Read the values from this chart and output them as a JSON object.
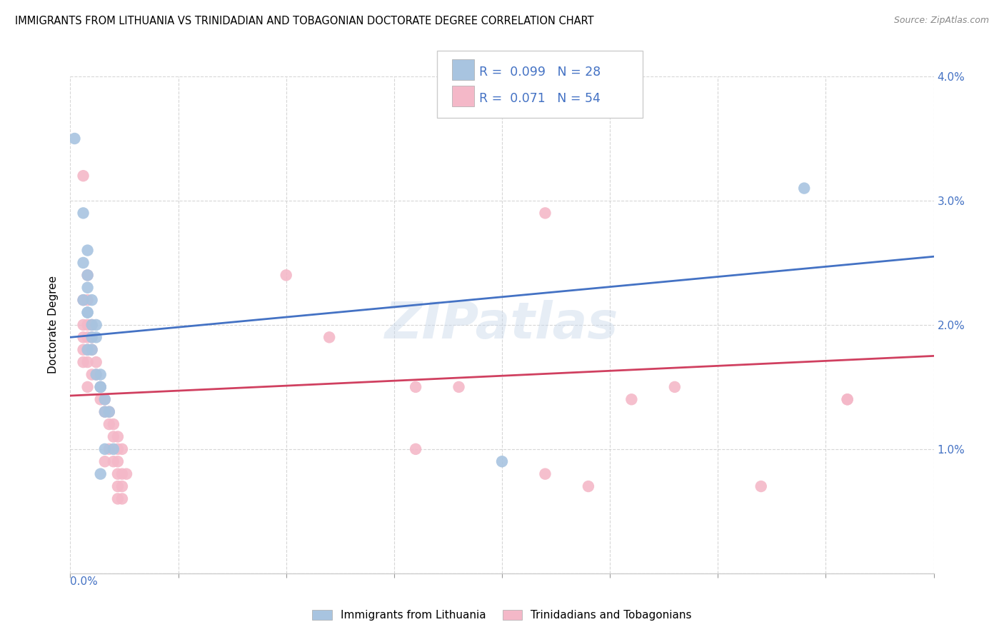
{
  "title": "IMMIGRANTS FROM LITHUANIA VS TRINIDADIAN AND TOBAGONIAN DOCTORATE DEGREE CORRELATION CHART",
  "source": "Source: ZipAtlas.com",
  "ylabel": "Doctorate Degree",
  "ylim": [
    0.0,
    0.04
  ],
  "xlim": [
    0.0,
    0.2
  ],
  "legend_label1": "Immigrants from Lithuania",
  "legend_label2": "Trinidadians and Tobagonians",
  "blue_color": "#a8c4e0",
  "pink_color": "#f4b8c8",
  "blue_line_color": "#4472c4",
  "pink_line_color": "#d04060",
  "watermark": "ZIPatlas",
  "blue_scatter": [
    [
      0.001,
      0.035
    ],
    [
      0.003,
      0.029
    ],
    [
      0.004,
      0.026
    ],
    [
      0.003,
      0.025
    ],
    [
      0.004,
      0.024
    ],
    [
      0.004,
      0.023
    ],
    [
      0.003,
      0.022
    ],
    [
      0.005,
      0.022
    ],
    [
      0.004,
      0.021
    ],
    [
      0.004,
      0.021
    ],
    [
      0.005,
      0.02
    ],
    [
      0.006,
      0.02
    ],
    [
      0.005,
      0.019
    ],
    [
      0.006,
      0.019
    ],
    [
      0.005,
      0.018
    ],
    [
      0.004,
      0.018
    ],
    [
      0.006,
      0.016
    ],
    [
      0.007,
      0.016
    ],
    [
      0.007,
      0.015
    ],
    [
      0.007,
      0.015
    ],
    [
      0.008,
      0.014
    ],
    [
      0.008,
      0.013
    ],
    [
      0.009,
      0.013
    ],
    [
      0.008,
      0.01
    ],
    [
      0.01,
      0.01
    ],
    [
      0.007,
      0.008
    ],
    [
      0.17,
      0.031
    ],
    [
      0.1,
      0.009
    ]
  ],
  "pink_scatter": [
    [
      0.003,
      0.032
    ],
    [
      0.004,
      0.024
    ],
    [
      0.05,
      0.024
    ],
    [
      0.003,
      0.022
    ],
    [
      0.004,
      0.022
    ],
    [
      0.003,
      0.02
    ],
    [
      0.004,
      0.02
    ],
    [
      0.005,
      0.02
    ],
    [
      0.003,
      0.019
    ],
    [
      0.004,
      0.019
    ],
    [
      0.005,
      0.019
    ],
    [
      0.003,
      0.018
    ],
    [
      0.004,
      0.018
    ],
    [
      0.005,
      0.018
    ],
    [
      0.003,
      0.017
    ],
    [
      0.004,
      0.017
    ],
    [
      0.006,
      0.017
    ],
    [
      0.006,
      0.016
    ],
    [
      0.005,
      0.016
    ],
    [
      0.004,
      0.015
    ],
    [
      0.007,
      0.015
    ],
    [
      0.007,
      0.014
    ],
    [
      0.008,
      0.014
    ],
    [
      0.008,
      0.013
    ],
    [
      0.009,
      0.013
    ],
    [
      0.009,
      0.012
    ],
    [
      0.01,
      0.012
    ],
    [
      0.01,
      0.011
    ],
    [
      0.011,
      0.011
    ],
    [
      0.009,
      0.01
    ],
    [
      0.011,
      0.01
    ],
    [
      0.012,
      0.01
    ],
    [
      0.008,
      0.009
    ],
    [
      0.01,
      0.009
    ],
    [
      0.011,
      0.009
    ],
    [
      0.011,
      0.008
    ],
    [
      0.012,
      0.008
    ],
    [
      0.013,
      0.008
    ],
    [
      0.011,
      0.007
    ],
    [
      0.012,
      0.007
    ],
    [
      0.011,
      0.006
    ],
    [
      0.012,
      0.006
    ],
    [
      0.11,
      0.029
    ],
    [
      0.06,
      0.019
    ],
    [
      0.08,
      0.015
    ],
    [
      0.09,
      0.015
    ],
    [
      0.11,
      0.008
    ],
    [
      0.14,
      0.015
    ],
    [
      0.13,
      0.014
    ],
    [
      0.18,
      0.014
    ],
    [
      0.08,
      0.01
    ],
    [
      0.12,
      0.007
    ],
    [
      0.16,
      0.007
    ],
    [
      0.18,
      0.014
    ]
  ],
  "blue_line": {
    "x0": 0.0,
    "y0": 0.019,
    "x1": 0.2,
    "y1": 0.0255
  },
  "pink_line": {
    "x0": 0.0,
    "y0": 0.0143,
    "x1": 0.2,
    "y1": 0.0175
  }
}
